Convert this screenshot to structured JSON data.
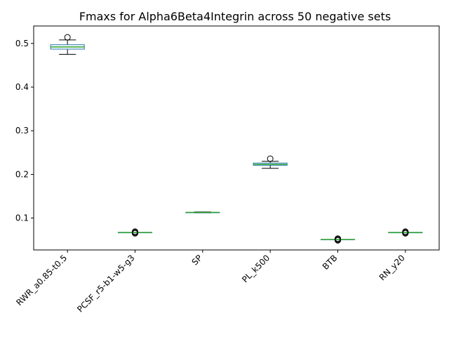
{
  "chart_data": {
    "type": "box",
    "title": "Fmaxs for Alpha6Beta4Integrin across 50 negative sets",
    "xlabel": "",
    "ylabel": "",
    "ylim": [
      0.027,
      0.54
    ],
    "yticks": [
      0.1,
      0.2,
      0.3,
      0.4,
      0.5
    ],
    "ytick_labels": [
      "0.1",
      "0.2",
      "0.3",
      "0.4",
      "0.5"
    ],
    "grid": false,
    "categories": [
      "RWR_a0.85-t0.5",
      "PCSF_r5-b1-w5-g3",
      "SP",
      "PL_k500",
      "BTB",
      "RN_y20"
    ],
    "boxes": [
      {
        "whisker_low": 0.475,
        "q1": 0.487,
        "median": 0.492,
        "q3": 0.497,
        "whisker_high": 0.508,
        "outliers": [
          0.514
        ]
      },
      {
        "whisker_low": 0.067,
        "q1": 0.067,
        "median": 0.067,
        "q3": 0.067,
        "whisker_high": 0.067,
        "outliers": [
          0.065,
          0.066,
          0.068,
          0.069
        ]
      },
      {
        "whisker_low": 0.112,
        "q1": 0.113,
        "median": 0.113,
        "q3": 0.113,
        "whisker_high": 0.114,
        "outliers": []
      },
      {
        "whisker_low": 0.214,
        "q1": 0.221,
        "median": 0.223,
        "q3": 0.226,
        "whisker_high": 0.23,
        "outliers": [
          0.236
        ]
      },
      {
        "whisker_low": 0.051,
        "q1": 0.051,
        "median": 0.051,
        "q3": 0.051,
        "whisker_high": 0.051,
        "outliers": [
          0.049,
          0.05,
          0.052,
          0.053
        ]
      },
      {
        "whisker_low": 0.067,
        "q1": 0.067,
        "median": 0.067,
        "q3": 0.067,
        "whisker_high": 0.067,
        "outliers": [
          0.065,
          0.066,
          0.068,
          0.069
        ]
      }
    ],
    "colors": {
      "box": "#1f77b4",
      "median": "#2ca02c",
      "whisker": "#000000",
      "outlier": "#000000"
    }
  }
}
